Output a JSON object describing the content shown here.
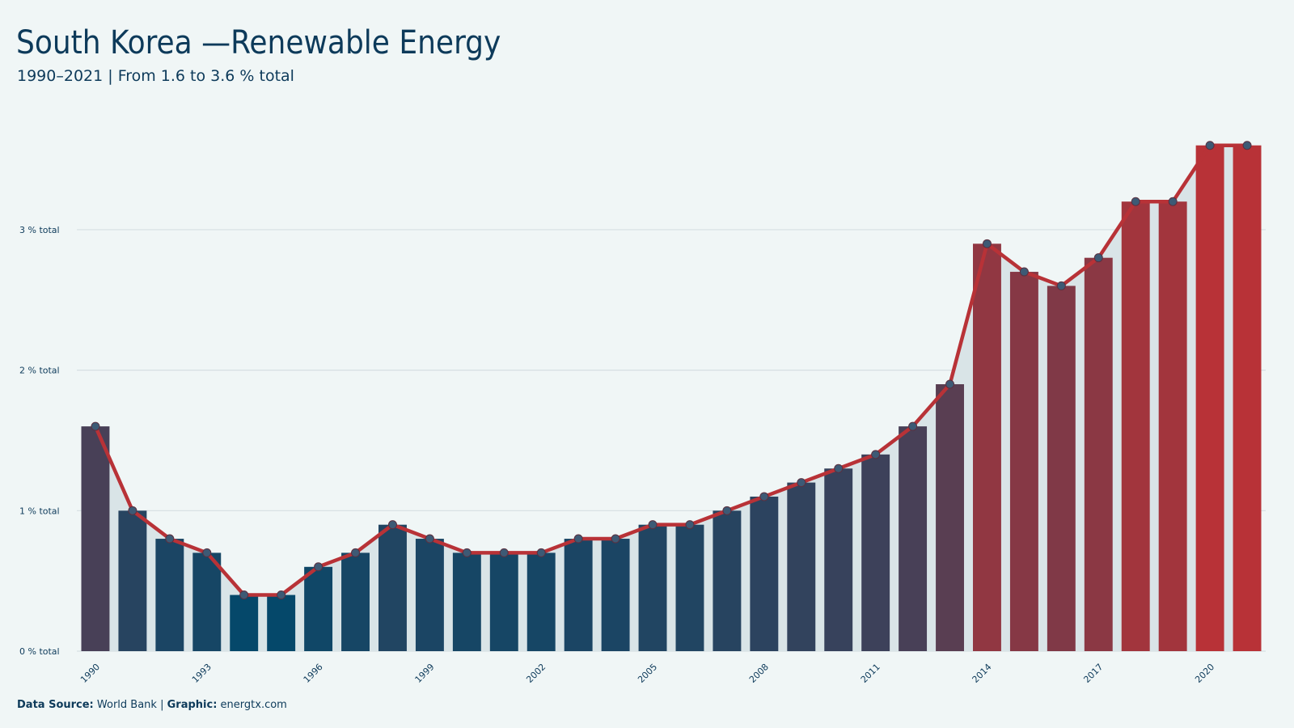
{
  "chart_data": {
    "type": "bar-line",
    "title": "South Korea —Renewable Energy",
    "subtitle": "1990–2021 | From 1.6 to 3.6 % total",
    "x": [
      1990,
      1991,
      1992,
      1993,
      1994,
      1995,
      1996,
      1997,
      1998,
      1999,
      2000,
      2001,
      2002,
      2003,
      2004,
      2005,
      2006,
      2007,
      2008,
      2009,
      2010,
      2011,
      2012,
      2013,
      2014,
      2015,
      2016,
      2017,
      2018,
      2019,
      2020,
      2021
    ],
    "values": [
      1.6,
      1.0,
      0.8,
      0.7,
      0.4,
      0.4,
      0.6,
      0.7,
      0.9,
      0.8,
      0.7,
      0.7,
      0.7,
      0.8,
      0.8,
      0.9,
      0.9,
      1.0,
      1.1,
      1.2,
      1.3,
      1.4,
      1.6,
      1.9,
      2.9,
      2.7,
      2.6,
      2.8,
      3.2,
      3.2,
      3.6,
      3.6
    ],
    "xlim": [
      1989.5,
      2021.5
    ],
    "xticks": [
      1990,
      1993,
      1996,
      1999,
      2002,
      2005,
      2008,
      2011,
      2014,
      2017,
      2020
    ],
    "ylim": [
      0,
      3.8
    ],
    "yticks": [
      {
        "value": 0,
        "label": "0 % total"
      },
      {
        "value": 1,
        "label": "1 % total"
      },
      {
        "value": 2,
        "label": "2 % total"
      },
      {
        "value": 3,
        "label": "3 % total"
      }
    ],
    "grid": true,
    "color_low": "#05486a",
    "color_high": "#b83237",
    "line_color": "#b83237",
    "marker_color": "#3d5a75",
    "area_color": "#d9e4e7",
    "footer": {
      "source_label": "Data Source:",
      "source": "World Bank",
      "separator": "|",
      "credit_label": "Graphic:",
      "credit": "energtx.com"
    }
  }
}
